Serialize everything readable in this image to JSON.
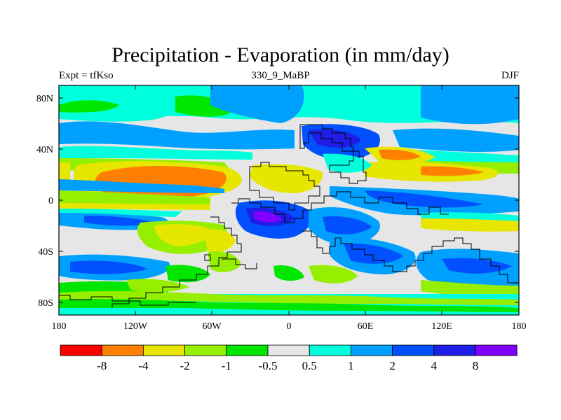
{
  "title": "Precipitation - Evaporation (in mm/day)",
  "subtitle_left": "Expt = tfKso",
  "subtitle_center": "330_9_MaBP",
  "subtitle_right": "DJF",
  "map": {
    "lat_ticks": [
      "80N",
      "40N",
      "0",
      "40S",
      "80S"
    ],
    "lon_ticks": [
      "180",
      "120W",
      "60W",
      "0",
      "60E",
      "120E",
      "180"
    ]
  },
  "colorbar": {
    "colors": [
      "#ff0000",
      "#ff8000",
      "#e6e600",
      "#96ee00",
      "#00e600",
      "#e6e6e6",
      "#00ffdc",
      "#00a0ff",
      "#0050ff",
      "#1e1ee6",
      "#8000ff"
    ],
    "labels": [
      "-8",
      "-4",
      "-2",
      "-1",
      "-0.5",
      "0.5",
      "1",
      "2",
      "4",
      "8"
    ]
  },
  "legend_colors": {
    "land_outline": "#000000",
    "background": "#ffffff"
  }
}
